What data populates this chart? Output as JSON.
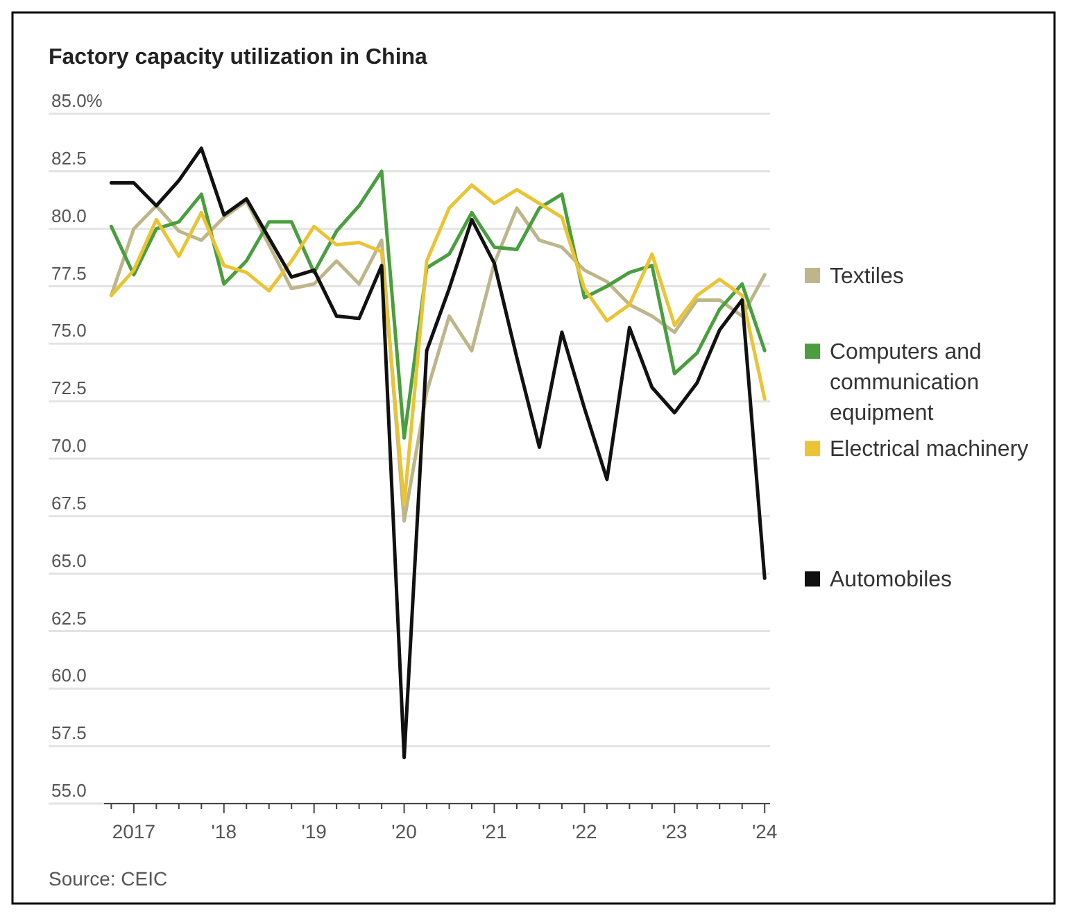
{
  "chart_data": {
    "type": "line",
    "title": "Factory capacity utilization in China",
    "x": [
      2016.75,
      2017,
      2017.25,
      2017.5,
      2017.75,
      2018,
      2018.25,
      2018.5,
      2018.75,
      2019,
      2019.25,
      2019.5,
      2019.75,
      2020,
      2020.25,
      2020.5,
      2020.75,
      2021,
      2021.25,
      2021.5,
      2021.75,
      2022,
      2022.25,
      2022.5,
      2022.75,
      2023,
      2023.25,
      2023.5,
      2023.75,
      2024
    ],
    "series": [
      {
        "name": "Textiles",
        "color": "#bdb68a",
        "values": [
          77.1,
          80.0,
          81.0,
          79.9,
          79.5,
          80.5,
          81.2,
          79.3,
          77.4,
          77.6,
          78.6,
          77.6,
          79.5,
          67.3,
          72.9,
          76.2,
          74.7,
          78.5,
          80.9,
          79.5,
          79.2,
          78.2,
          77.7,
          76.7,
          76.2,
          75.5,
          76.9,
          76.9,
          76.2,
          78.0
        ]
      },
      {
        "name": "Computers and communication equipment",
        "color": "#4a9e3f",
        "values": [
          80.1,
          78.0,
          80.0,
          80.3,
          81.5,
          77.6,
          78.6,
          80.3,
          80.3,
          78.1,
          79.9,
          81.0,
          82.5,
          70.9,
          78.3,
          78.9,
          80.7,
          79.2,
          79.1,
          80.9,
          81.5,
          77.0,
          77.5,
          78.1,
          78.4,
          73.7,
          74.6,
          76.5,
          77.6,
          74.7
        ]
      },
      {
        "name": "Electrical machinery",
        "color": "#eac435",
        "values": [
          77.1,
          78.2,
          80.4,
          78.8,
          80.7,
          78.4,
          78.1,
          77.3,
          78.6,
          80.1,
          79.3,
          79.4,
          79.0,
          68.0,
          78.6,
          80.9,
          81.9,
          81.1,
          81.7,
          81.1,
          80.5,
          77.4,
          76.0,
          76.7,
          78.9,
          75.8,
          77.1,
          77.8,
          77.1,
          72.6
        ]
      },
      {
        "name": "Automobiles",
        "color": "#111111",
        "values": [
          82.0,
          82.0,
          81.0,
          82.1,
          83.5,
          80.6,
          81.3,
          79.6,
          77.9,
          78.2,
          76.2,
          76.1,
          78.4,
          57.0,
          74.7,
          77.4,
          80.4,
          78.5,
          74.4,
          70.5,
          75.5,
          72.2,
          69.1,
          75.7,
          73.1,
          72.0,
          73.3,
          75.6,
          76.9,
          64.8
        ]
      }
    ],
    "xlim": [
      2016.67,
      2024.06
    ],
    "xticks": [
      {
        "value": 2016.75,
        "label": null
      },
      {
        "value": 2017,
        "label": "2017"
      },
      {
        "value": 2017.25,
        "label": null
      },
      {
        "value": 2017.5,
        "label": null
      },
      {
        "value": 2017.75,
        "label": null
      },
      {
        "value": 2018,
        "label": "'18"
      },
      {
        "value": 2018.25,
        "label": null
      },
      {
        "value": 2018.5,
        "label": null
      },
      {
        "value": 2018.75,
        "label": null
      },
      {
        "value": 2019,
        "label": "'19"
      },
      {
        "value": 2019.25,
        "label": null
      },
      {
        "value": 2019.5,
        "label": null
      },
      {
        "value": 2019.75,
        "label": null
      },
      {
        "value": 2020,
        "label": "'20"
      },
      {
        "value": 2020.25,
        "label": null
      },
      {
        "value": 2020.5,
        "label": null
      },
      {
        "value": 2020.75,
        "label": null
      },
      {
        "value": 2021,
        "label": "'21"
      },
      {
        "value": 2021.25,
        "label": null
      },
      {
        "value": 2021.5,
        "label": null
      },
      {
        "value": 2021.75,
        "label": null
      },
      {
        "value": 2022,
        "label": "'22"
      },
      {
        "value": 2022.25,
        "label": null
      },
      {
        "value": 2022.5,
        "label": null
      },
      {
        "value": 2022.75,
        "label": null
      },
      {
        "value": 2023,
        "label": "'23"
      },
      {
        "value": 2023.25,
        "label": null
      },
      {
        "value": 2023.5,
        "label": null
      },
      {
        "value": 2023.75,
        "label": null
      },
      {
        "value": 2024,
        "label": "'24"
      }
    ],
    "ylim": [
      55,
      85
    ],
    "yticks": [
      {
        "value": 55,
        "label": "55.0"
      },
      {
        "value": 57.5,
        "label": "57.5"
      },
      {
        "value": 60,
        "label": "60.0"
      },
      {
        "value": 62.5,
        "label": "62.5"
      },
      {
        "value": 65,
        "label": "65.0"
      },
      {
        "value": 67.5,
        "label": "67.5"
      },
      {
        "value": 70,
        "label": "70.0"
      },
      {
        "value": 72.5,
        "label": "72.5"
      },
      {
        "value": 75,
        "label": "75.0"
      },
      {
        "value": 77.5,
        "label": "77.5"
      },
      {
        "value": 80,
        "label": "80.0"
      },
      {
        "value": 82.5,
        "label": "82.5"
      },
      {
        "value": 85,
        "label": "85.0%"
      }
    ],
    "grid": "y",
    "legend": "right",
    "annotations": [
      "Source: CEIC"
    ]
  }
}
